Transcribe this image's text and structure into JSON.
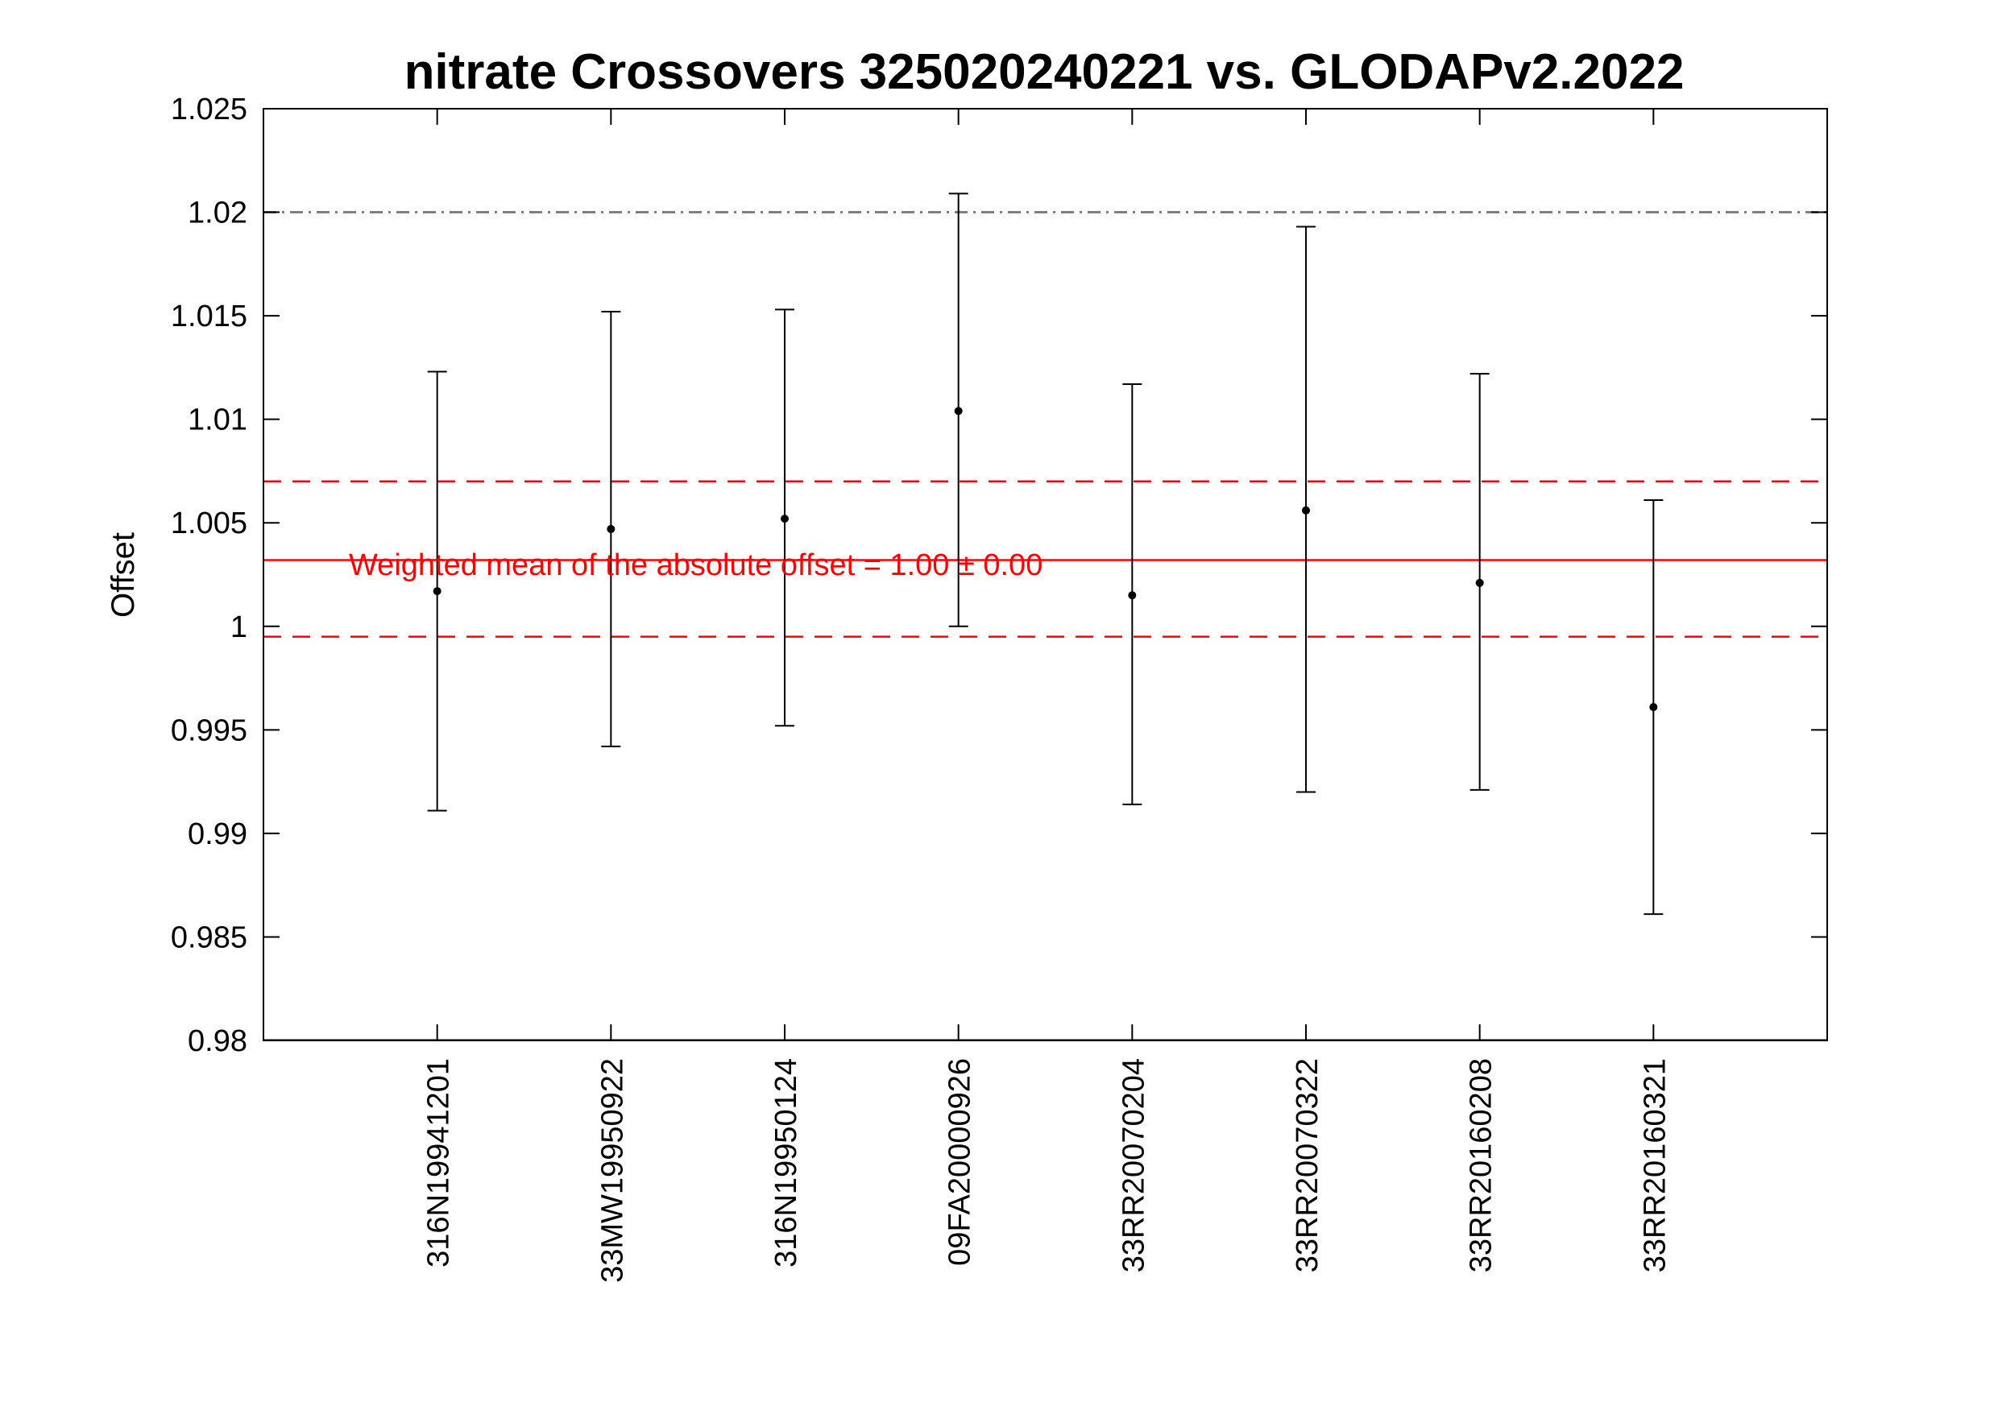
{
  "chart_data": {
    "type": "scatter",
    "title": "nitrate Crossovers 325020240221 vs. GLODAPv2.2022",
    "xlabel": "",
    "ylabel": "Offset",
    "ylim": [
      0.98,
      1.025
    ],
    "yticks": [
      "0.98",
      "0.985",
      "0.99",
      "0.995",
      "1",
      "1.005",
      "1.01",
      "1.015",
      "1.02",
      "1.025"
    ],
    "categories": [
      "316N19941201",
      "33MW19950922",
      "316N19950124",
      "09FA20000926",
      "33RR20070204",
      "33RR20070322",
      "33RR20160208",
      "33RR20160321"
    ],
    "values": [
      1.0017,
      1.0047,
      1.0052,
      1.0104,
      1.0015,
      1.0056,
      1.0021,
      0.9961
    ],
    "error_low": [
      0.9911,
      0.9942,
      0.9952,
      1.0,
      0.9914,
      0.992,
      0.9921,
      0.9861
    ],
    "error_high": [
      1.0123,
      1.0152,
      1.0153,
      1.0209,
      1.0117,
      1.0193,
      1.0122,
      1.0061
    ],
    "weighted_mean": 1.0032,
    "mean_band": [
      0.9995,
      1.007
    ],
    "reference_line": 1.02,
    "annotation": "Weighted mean of the absolute offset = 1.00 ± 0.00",
    "grid": false,
    "colors": {
      "points": "#000000",
      "mean_line": "#ff0000",
      "band_lines": "#ff0000",
      "reference_line": "#808080",
      "annotation": "#ff0000"
    }
  }
}
